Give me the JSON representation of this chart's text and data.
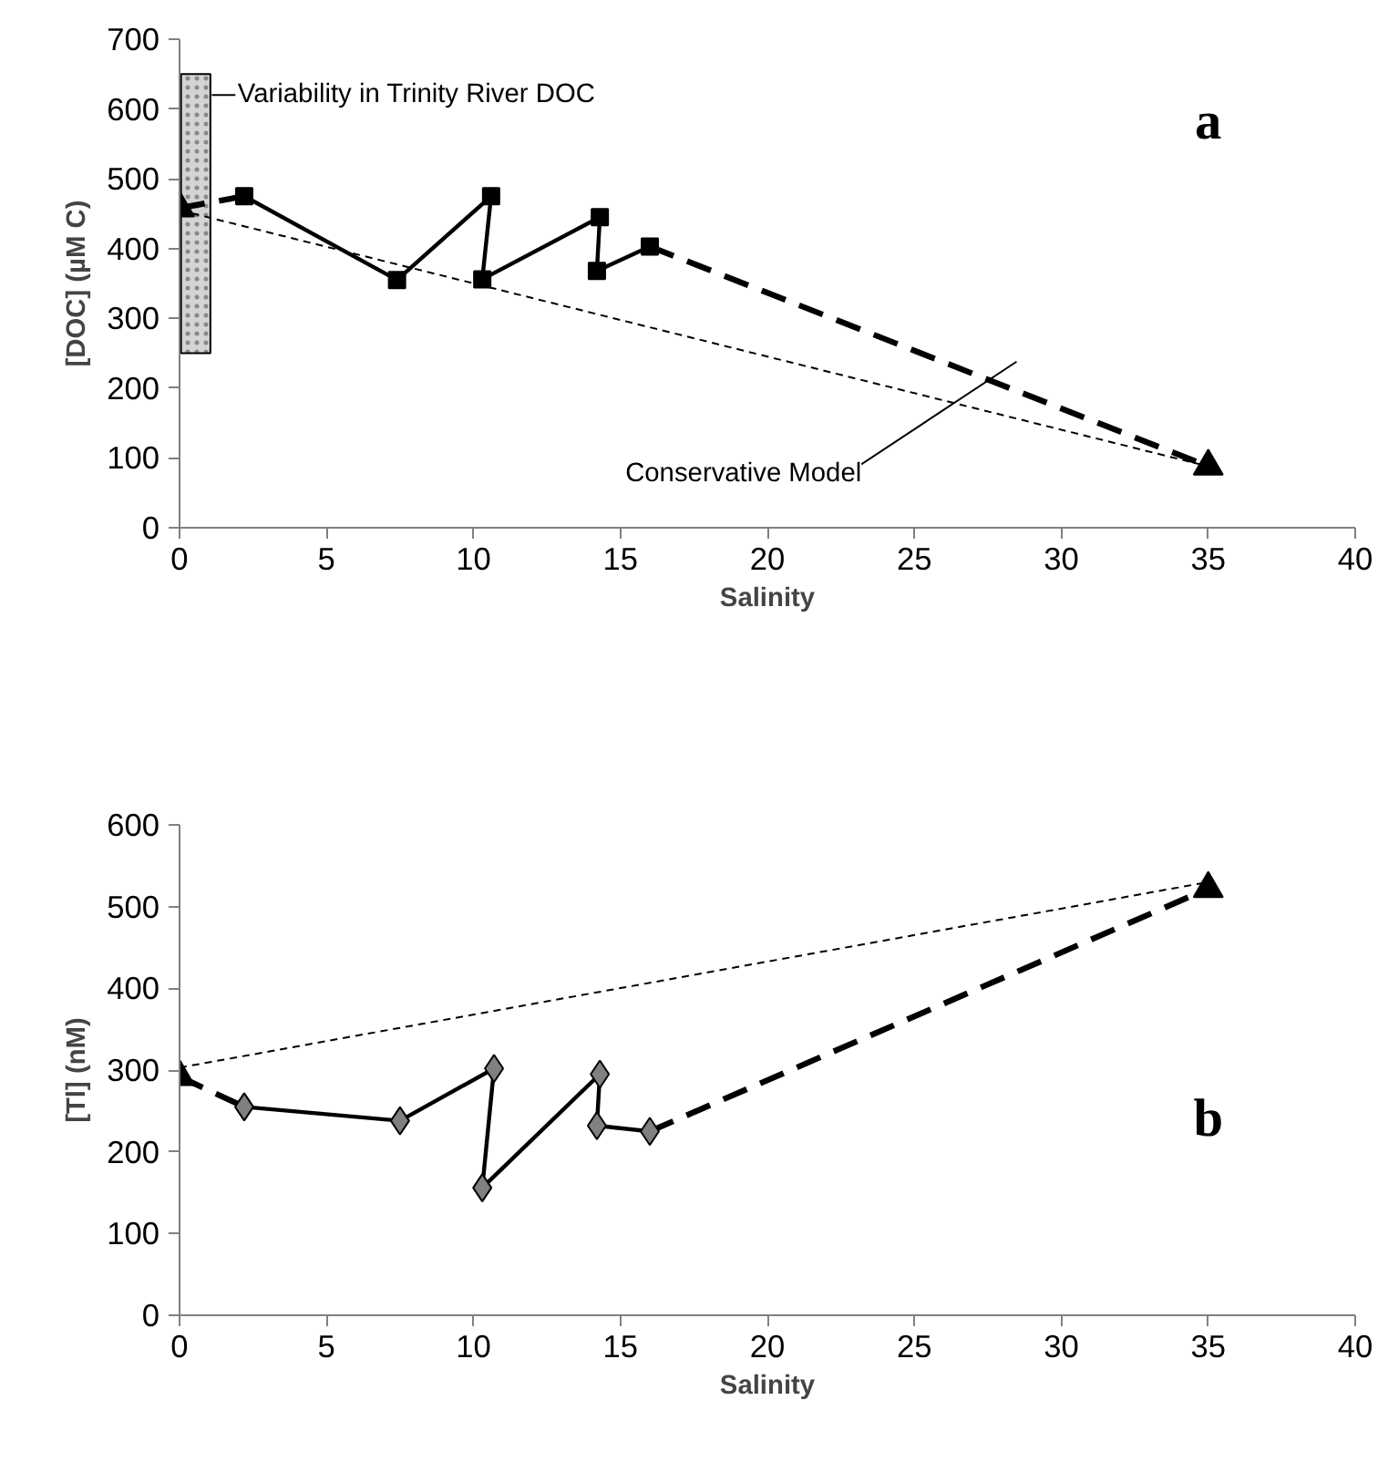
{
  "chart_data": [
    {
      "type": "line",
      "xlabel": "Salinity",
      "ylabel": "[DOC] (µM C)",
      "xlim": [
        0,
        40
      ],
      "ylim": [
        0,
        700
      ],
      "xticks": [
        0,
        5,
        10,
        15,
        20,
        25,
        30,
        35,
        40
      ],
      "yticks": [
        0,
        100,
        200,
        300,
        400,
        500,
        600,
        700
      ],
      "grid": false,
      "series": [
        {
          "type": "bar",
          "x": [
            0.55
          ],
          "base": [
            250
          ],
          "values": [
            400
          ],
          "color": "#d4d4d4"
        },
        {
          "x": [
            0,
            35
          ],
          "values": [
            455,
            88
          ],
          "color": "#000000",
          "line_style": "dotted",
          "marker": "none"
        },
        {
          "x": [
            0,
            2.2
          ],
          "values": [
            458,
            475
          ],
          "color": "#000000",
          "line_style": "dashed"
        },
        {
          "x": [
            16,
            35
          ],
          "values": [
            403,
            88
          ],
          "color": "#000000",
          "line_style": "dashed"
        },
        {
          "x": [
            2.2,
            7.4,
            10.6,
            10.3,
            14.3,
            14.2,
            16
          ],
          "values": [
            475,
            355,
            475,
            356,
            445,
            368,
            403
          ],
          "color": "#000000",
          "line_style": "solid",
          "marker": "square"
        },
        {
          "type": "scatter",
          "x": [
            0,
            35
          ],
          "values": [
            458,
            88
          ],
          "color": "#000000",
          "marker": "triangle"
        }
      ],
      "annotations": [
        {
          "text": "Variability in Trinity River DOC",
          "x": 1.1,
          "y": 620
        },
        "Conservative Model",
        "a"
      ]
    },
    {
      "type": "line",
      "xlabel": "Salinity",
      "ylabel": "[Tl] (nM)",
      "xlim": [
        0,
        40
      ],
      "ylim": [
        0,
        600
      ],
      "xticks": [
        0,
        5,
        10,
        15,
        20,
        25,
        30,
        35,
        40
      ],
      "yticks": [
        0,
        100,
        200,
        300,
        400,
        500,
        600
      ],
      "grid": false,
      "series": [
        {
          "x": [
            0,
            35
          ],
          "values": [
            303,
            530
          ],
          "color": "#000000",
          "line_style": "dotted",
          "marker": "none"
        },
        {
          "x": [
            0,
            2.2
          ],
          "values": [
            292,
            255
          ],
          "color": "#000000",
          "line_style": "dashed"
        },
        {
          "x": [
            16,
            35
          ],
          "values": [
            225,
            522
          ],
          "color": "#000000",
          "line_style": "dashed"
        },
        {
          "x": [
            2.2,
            7.5,
            10.7,
            10.3,
            14.3,
            14.2,
            16
          ],
          "values": [
            255,
            238,
            302,
            156,
            295,
            232,
            225
          ],
          "color": "#808080",
          "line_style": "solid",
          "marker": "diamond"
        },
        {
          "type": "scatter",
          "x": [
            0,
            35
          ],
          "values": [
            292,
            522
          ],
          "color": "#000000",
          "marker": "triangle"
        }
      ],
      "annotations": [
        "b"
      ]
    }
  ]
}
